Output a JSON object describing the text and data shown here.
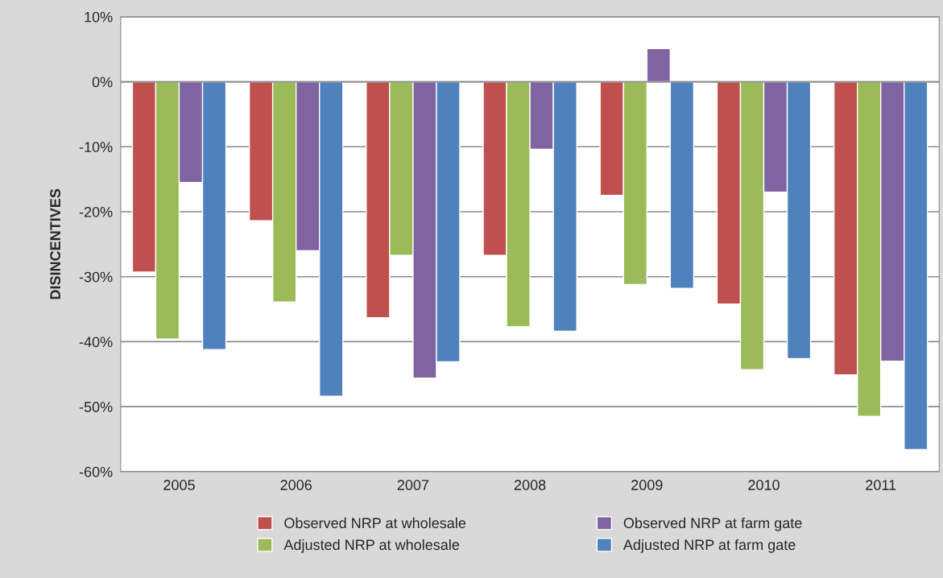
{
  "chart_data": {
    "type": "bar",
    "ylabel": "DISINCENTIVES",
    "categories": [
      "2005",
      "2006",
      "2007",
      "2008",
      "2009",
      "2010",
      "2011"
    ],
    "series": [
      {
        "name": "Observed NRP at wholesale",
        "color": "#c0504d",
        "values": [
          -29.3,
          -21.4,
          -36.3,
          -26.7,
          -17.5,
          -34.2,
          -45.1
        ]
      },
      {
        "name": "Adjusted NRP at wholesale",
        "color": "#9bbb59",
        "values": [
          -39.6,
          -33.9,
          -26.7,
          -37.7,
          -31.2,
          -44.3,
          -51.5
        ]
      },
      {
        "name": "Observed NRP at farm gate",
        "color": "#8064a2",
        "values": [
          -15.5,
          -26.0,
          -45.6,
          -10.4,
          5.1,
          -17.0,
          -43.0
        ]
      },
      {
        "name": "Adjusted NRP at farm gate",
        "color": "#4f81bd",
        "values": [
          -41.2,
          -48.4,
          -43.1,
          -38.4,
          -31.8,
          -42.6,
          -56.6
        ]
      }
    ],
    "ylim": [
      -60,
      10
    ],
    "yticks": [
      {
        "value": -60,
        "label": "-60%"
      },
      {
        "value": -50,
        "label": "-50%"
      },
      {
        "value": -40,
        "label": "-40%"
      },
      {
        "value": -30,
        "label": "-30%"
      },
      {
        "value": -20,
        "label": "-20%"
      },
      {
        "value": -10,
        "label": "-10%"
      },
      {
        "value": 0,
        "label": "0%"
      },
      {
        "value": 10,
        "label": "10%"
      }
    ],
    "grid": "y",
    "legend": "bottom"
  }
}
